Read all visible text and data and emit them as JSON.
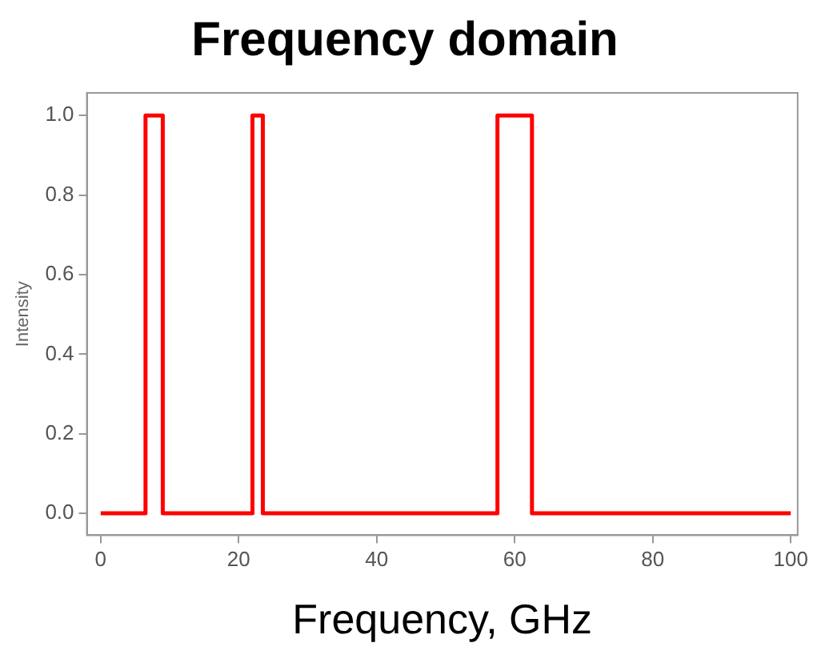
{
  "chart_data": {
    "type": "line",
    "title": "Frequency domain",
    "xlabel": "Frequency, GHz",
    "ylabel": "Intensity",
    "series": [
      {
        "color": "#ff0000",
        "x": [
          0,
          6.5,
          6.5,
          9,
          9,
          22,
          22,
          23.5,
          23.5,
          57.5,
          57.5,
          62.5,
          62.5,
          100
        ],
        "values": [
          0,
          0,
          1,
          1,
          0,
          0,
          1,
          1,
          0,
          0,
          1,
          1,
          0,
          0
        ]
      }
    ],
    "xlim": [
      -2,
      101
    ],
    "ylim": [
      -0.055,
      1.057
    ],
    "xticks": [
      0,
      20,
      40,
      60,
      80,
      100
    ],
    "yticks": [
      {
        "value": 0,
        "label": "0.0"
      },
      {
        "value": 0.2,
        "label": "0.2"
      },
      {
        "value": 0.4,
        "label": "0.4"
      },
      {
        "value": 0.6,
        "label": "0.6"
      },
      {
        "value": 0.8,
        "label": "0.8"
      },
      {
        "value": 1,
        "label": "1.0"
      }
    ],
    "grid": false,
    "legend": false,
    "marker": "none",
    "line_style": "solid"
  }
}
